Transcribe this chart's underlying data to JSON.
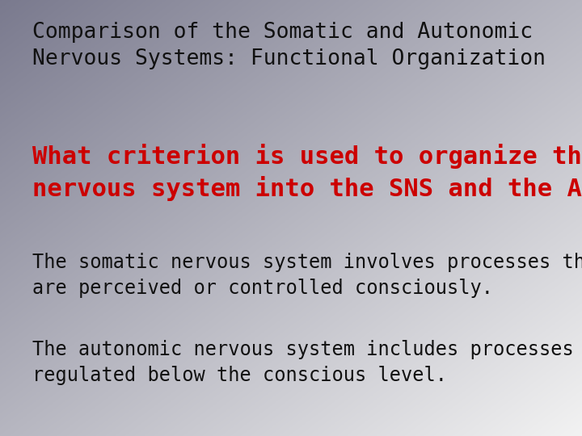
{
  "title_line1": "Comparison of the Somatic and Autonomic",
  "title_line2": "Nervous Systems: Functional Organization",
  "question_line1": "What criterion is used to organize the",
  "question_line2": "nervous system into the SNS and the ANS?",
  "body1_line1": "The somatic nervous system involves processes that",
  "body1_line2": "are perceived or controlled consciously.",
  "body2_line1": "The autonomic nervous system includes processes",
  "body2_line2": "regulated below the conscious level.",
  "title_color": "#111111",
  "question_color": "#cc0000",
  "body_color": "#111111",
  "bg_topleft_r": 0.478,
  "bg_topleft_g": 0.478,
  "bg_topleft_b": 0.557,
  "bg_botright_r": 0.95,
  "bg_botright_g": 0.95,
  "bg_botright_b": 0.95,
  "title_fontsize": 19,
  "question_fontsize": 22,
  "body_fontsize": 17
}
